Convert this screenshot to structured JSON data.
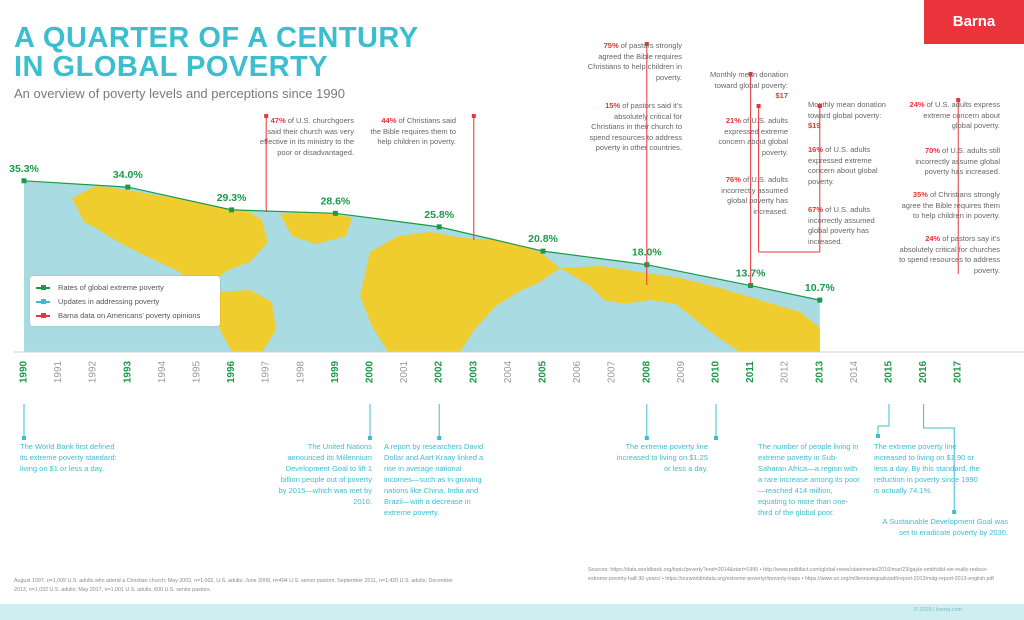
{
  "header": {
    "title_line1": "A QUARTER OF A CENTURY",
    "title_line2": "IN GLOBAL POVERTY",
    "subtitle": "An overview of poverty levels and perceptions since 1990",
    "logo": "Barna"
  },
  "colors": {
    "teal": "#3bbfd0",
    "green": "#1a9a4a",
    "red": "#e8343a",
    "map_ocean": "#a9dbe3",
    "map_land": "#f0cd2e"
  },
  "legend": {
    "items": [
      {
        "label": "Rates of global extreme poverty",
        "color": "#1a9a4a"
      },
      {
        "label": "Updates in addressing poverty",
        "color": "#3bbfd0"
      },
      {
        "label": "Barna data on Americans' poverty opinions",
        "color": "#e8343a"
      }
    ]
  },
  "chart_data": {
    "type": "line",
    "years": [
      "1990",
      "1991",
      "1992",
      "1993",
      "1994",
      "1995",
      "1996",
      "1997",
      "1998",
      "1999",
      "2000",
      "2001",
      "2002",
      "2003",
      "2004",
      "2005",
      "2006",
      "2007",
      "2008",
      "2009",
      "2010",
      "2011",
      "2012",
      "2013",
      "2014",
      "2015",
      "2016",
      "2017"
    ],
    "series": [
      {
        "name": "Rates of global extreme poverty",
        "points": [
          {
            "x": 1990,
            "y": 35.3,
            "label": "35.3%"
          },
          {
            "x": 1993,
            "y": 34.0,
            "label": "34.0%"
          },
          {
            "x": 1996,
            "y": 29.3,
            "label": "29.3%"
          },
          {
            "x": 1999,
            "y": 28.6,
            "label": "28.6%"
          },
          {
            "x": 2002,
            "y": 25.8,
            "label": "25.8%"
          },
          {
            "x": 2005,
            "y": 20.8,
            "label": "20.8%"
          },
          {
            "x": 2008,
            "y": 18.0,
            "label": "18.0%"
          },
          {
            "x": 2011,
            "y": 13.7,
            "label": "13.7%"
          },
          {
            "x": 2013,
            "y": 10.7,
            "label": "10.7%"
          }
        ]
      }
    ],
    "xlabel": "",
    "ylabel": "",
    "grid": false,
    "legend_position": "bottom-left"
  },
  "barna_notes": [
    {
      "year": 1997,
      "hl": "47%",
      "text": " of U.S. churchgoers said their church was very effective in its ministry to the poor or disadvantaged."
    },
    {
      "year": 2003,
      "hl": "44%",
      "text": " of Christians said the Bible requires them to help children in poverty."
    },
    {
      "year": 2008,
      "items": [
        {
          "hl": "75%",
          "text": " of pastors strongly agreed the Bible requires Christians to help children in poverty."
        },
        {
          "hl": "15%",
          "text": " of pastors said it's absolutely critical for Christians in their church to spend resources to address poverty in other countries."
        }
      ]
    },
    {
      "year": 2011,
      "items": [
        {
          "pre": "Monthly mean donation toward global poverty: ",
          "hl": "$17",
          "text": ""
        },
        {
          "hl": "21%",
          "text": " of U.S. adults expressed extreme concern about global poverty."
        },
        {
          "hl": "76%",
          "text": " of U.S. adults incorrectly assumed global poverty has increased."
        }
      ]
    },
    {
      "year": 2013,
      "items": [
        {
          "pre": "Monthly mean donation toward global poverty: ",
          "hl": "$19",
          "text": ""
        },
        {
          "hl": "16%",
          "text": " of U.S. adults expressed extreme concern about global poverty."
        },
        {
          "hl": "67%",
          "text": " of U.S. adults incorrectly assumed global poverty has increased."
        }
      ]
    },
    {
      "year": 2017,
      "items": [
        {
          "hl": "24%",
          "text": " of U.S. adults express extreme concern about global poverty."
        },
        {
          "hl": "70%",
          "text": " of U.S. adults still incorrectly assume global poverty has increased."
        },
        {
          "hl": "35%",
          "text": " of Christians strongly agree the Bible requires them to help children in poverty."
        },
        {
          "hl": "24%",
          "text": " of pastors say it's absolutely critical for churches to spend resources to address poverty."
        }
      ]
    }
  ],
  "updates": [
    {
      "year": 1990,
      "text": "The World Bank first defined its extreme poverty standard: living on $1 or less a day."
    },
    {
      "year": 2000,
      "text": "The United Nations announced its Millennium Development Goal to lift 1 billion people out of poverty by 2015—which was met by 2010."
    },
    {
      "year": 2002,
      "text": "A report by researchers David Dollar and Aart Kraay linked a rise in average national incomes—such as in growing nations like China, India and Brazil—with a decrease in extreme poverty."
    },
    {
      "year": 2008,
      "text": "The extreme poverty line increased to living on $1.25 or less a day."
    },
    {
      "year": 2010,
      "text": "The number of people living in extreme poverty in Sub-Saharan Africa—a region with a rare increase among its poor—reached 414 million, equating to more than one-third of the global poor."
    },
    {
      "year": 2015,
      "text": "The extreme poverty line increased to living on $1.90 or less a day. By this standard, the reduction in poverty since 1990 is actually 74.1%."
    },
    {
      "year": 2017,
      "text": "A Sustainable Development Goal was set to eradicate poverty by 2030."
    }
  ],
  "footer": {
    "methodology": "August 1997, n=1,009 U.S. adults who attend a Christian church; May 2003, n=1,002, U.S. adults; June 2008, n=494 U.S. senior pastors; September 2011, n=1,420 U.S. adults; December 2013, n=1,032 U.S. adults; May 2017, n=1,001 U.S. adults, 600 U.S. senior pastors.",
    "sources": "Sources: https://data.worldbank.org/topic/poverty?end=2014&start=1990 • http://www.politifact.com/global-news/statements/2016/mar/23/gayle-smith/did-we-really-reduce-extreme-poverty-half-30-years/ • https://ourworldindata.org/extreme-poverty/#poverty-traps • https://www.un.org/millenniumgoals/pdf/report-2013/mdg-report-2013-english.pdf",
    "copyright": "© 2018 | barna.com"
  }
}
